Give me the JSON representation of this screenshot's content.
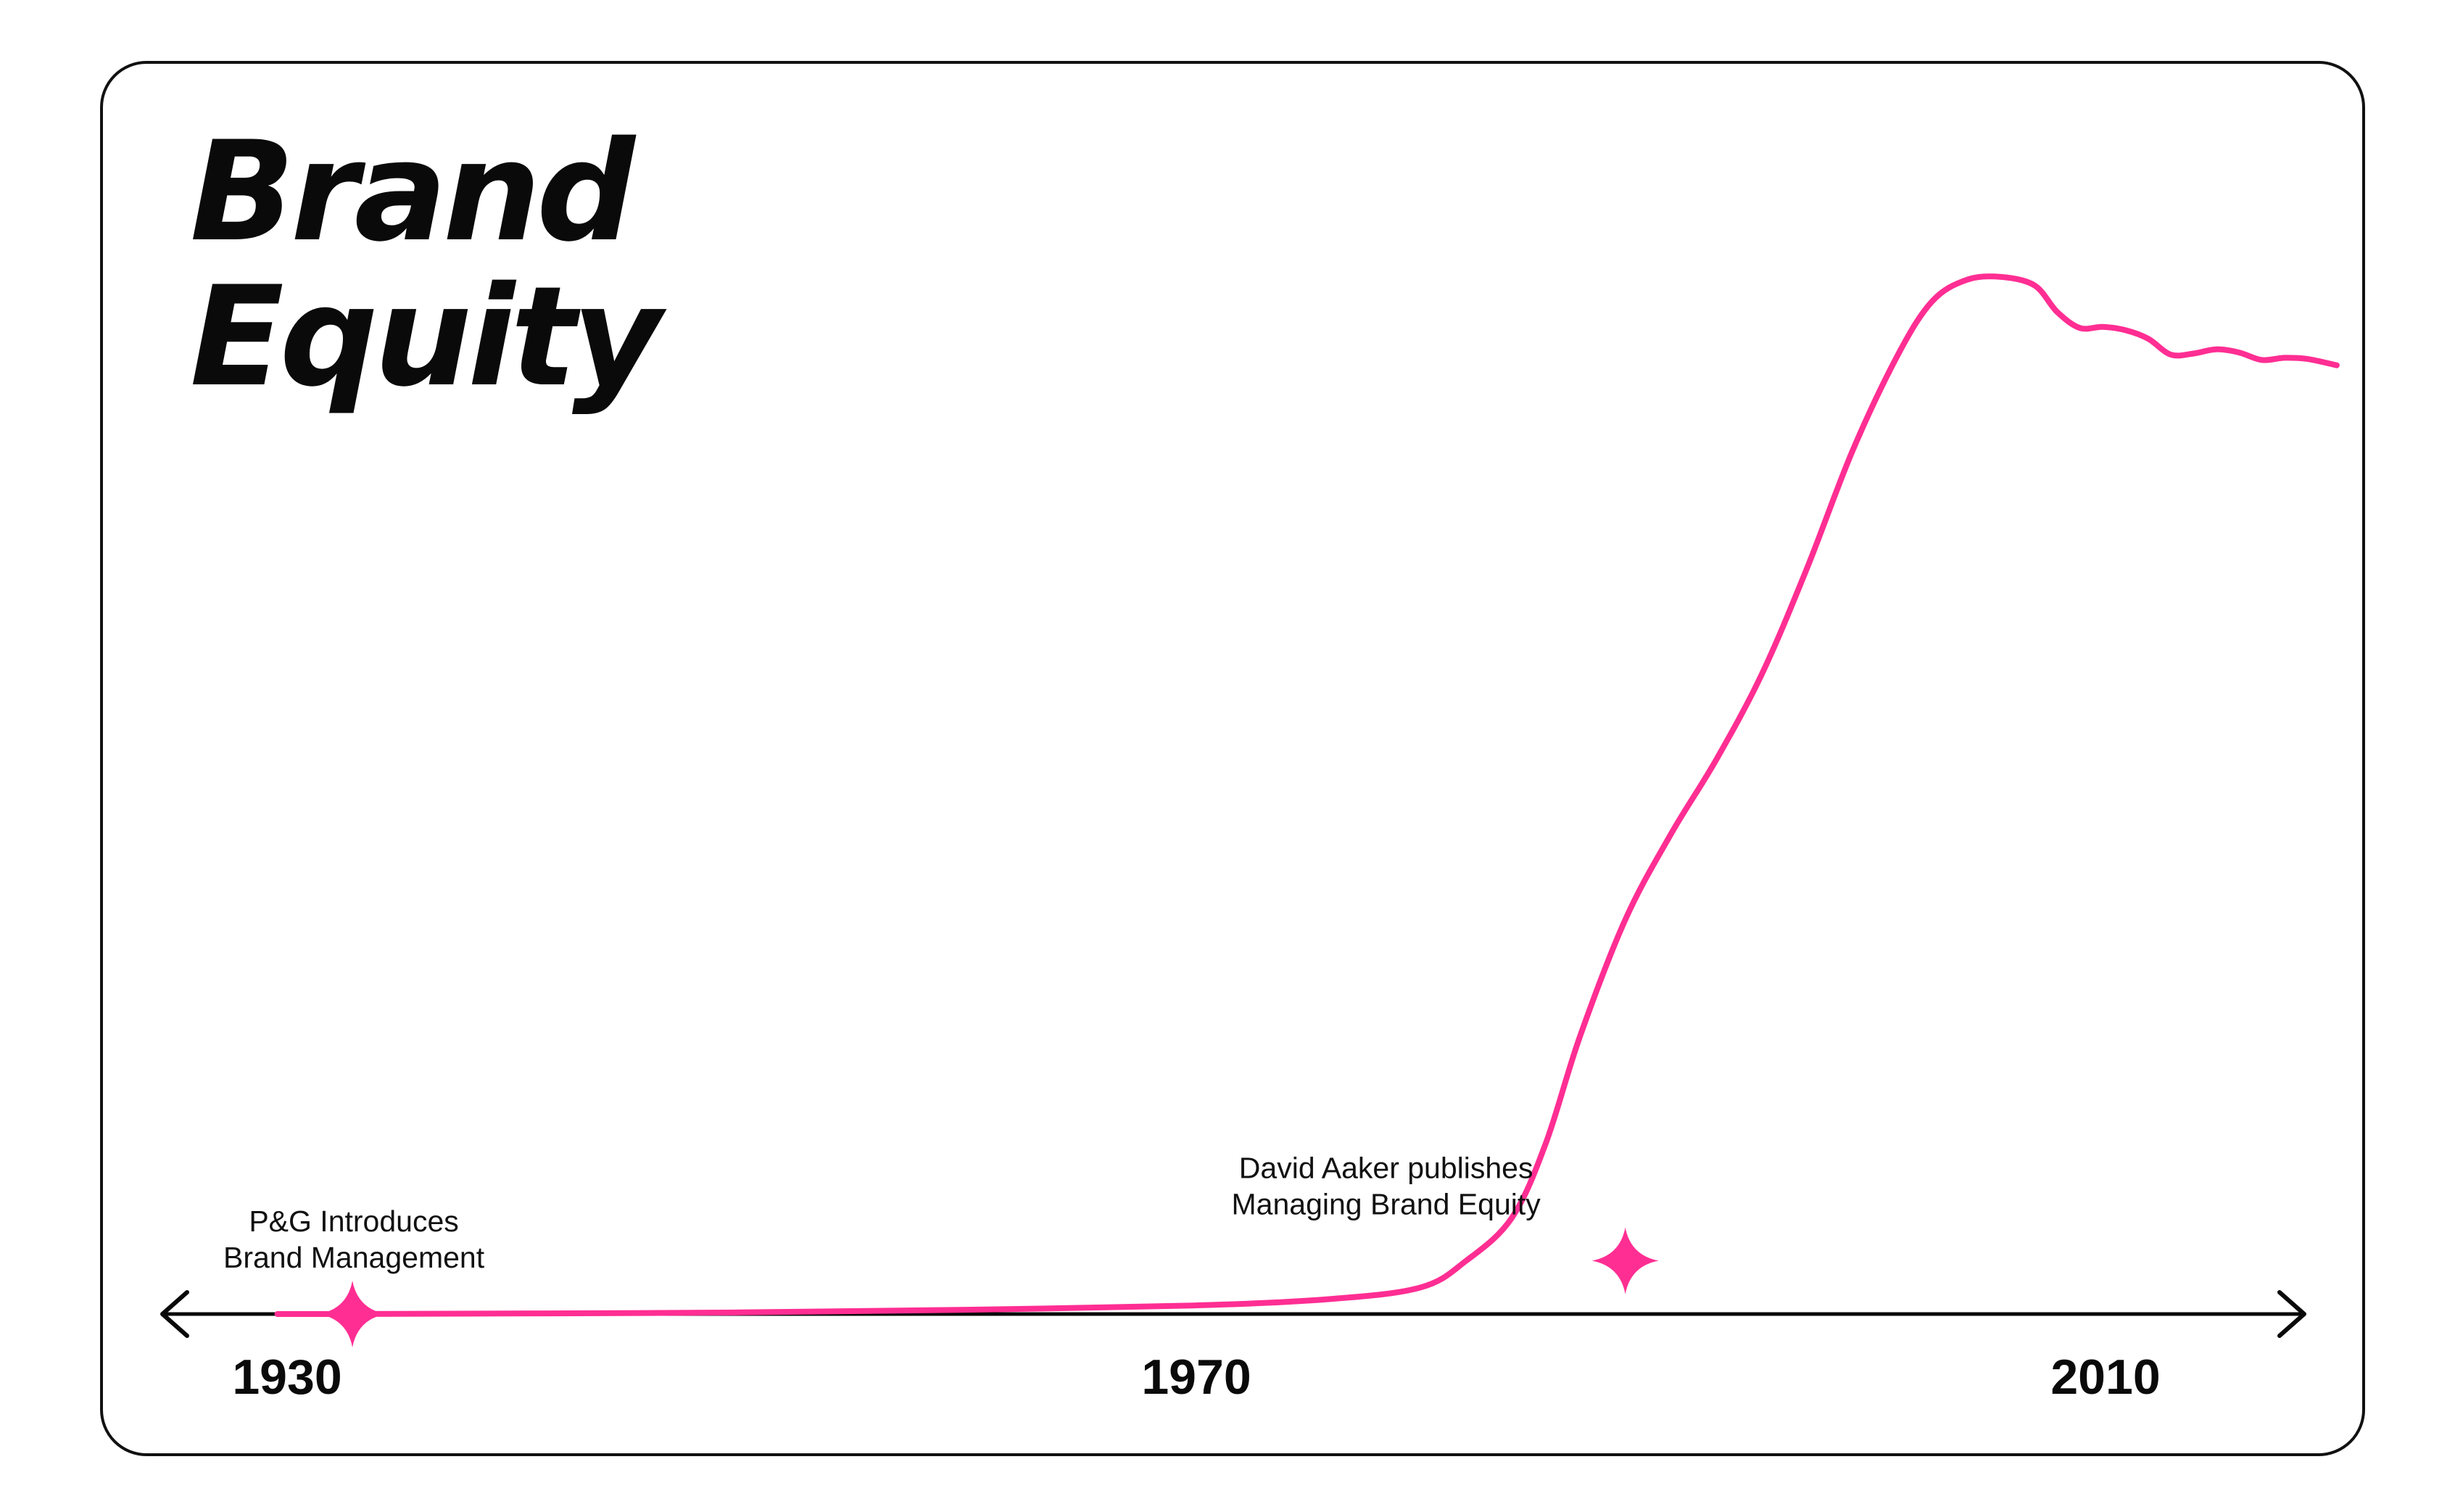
{
  "chart_data": {
    "type": "line",
    "title_lines": [
      "Brand",
      "Equity"
    ],
    "xlabel": "",
    "ylabel": "",
    "x_ticks": [
      1930,
      1970,
      2010
    ],
    "grid": false,
    "legend": "none",
    "colors": {
      "line": "#ff2e93",
      "axis": "#0a0a0a",
      "border": "#111111"
    },
    "series": [
      {
        "x": [
          1929.7,
          1933,
          1940,
          1950,
          1960,
          1970,
          1976,
          1980,
          1982,
          1984,
          1985.5,
          1987,
          1989,
          1991,
          1993,
          1995,
          1997,
          1999,
          2001,
          2002.5,
          2004,
          2005.5,
          2007,
          2008,
          2009,
          2010,
          2011,
          2012,
          2013,
          2014,
          2015,
          2016,
          2017,
          2018,
          2019,
          2020.3
        ],
        "y": [
          0,
          0,
          0.05,
          0.15,
          0.4,
          0.8,
          1.4,
          2.5,
          5,
          9,
          16,
          26,
          37,
          45,
          52,
          60,
          70,
          81,
          90,
          95,
          97,
          97.3,
          96.5,
          94,
          92.5,
          92.6,
          92.3,
          91.5,
          90,
          90.1,
          90.5,
          90.2,
          89.5,
          89.7,
          89.6,
          89
        ]
      }
    ],
    "annotations": [
      {
        "x": 1933,
        "y": 0,
        "lines": [
          "P&G Introduces",
          "Brand Management"
        ],
        "marker": "star"
      },
      {
        "x": 1989,
        "y": 5,
        "lines": [
          "David Aaker publishes",
          "Managing Brand Equity"
        ],
        "marker": "star"
      }
    ]
  }
}
